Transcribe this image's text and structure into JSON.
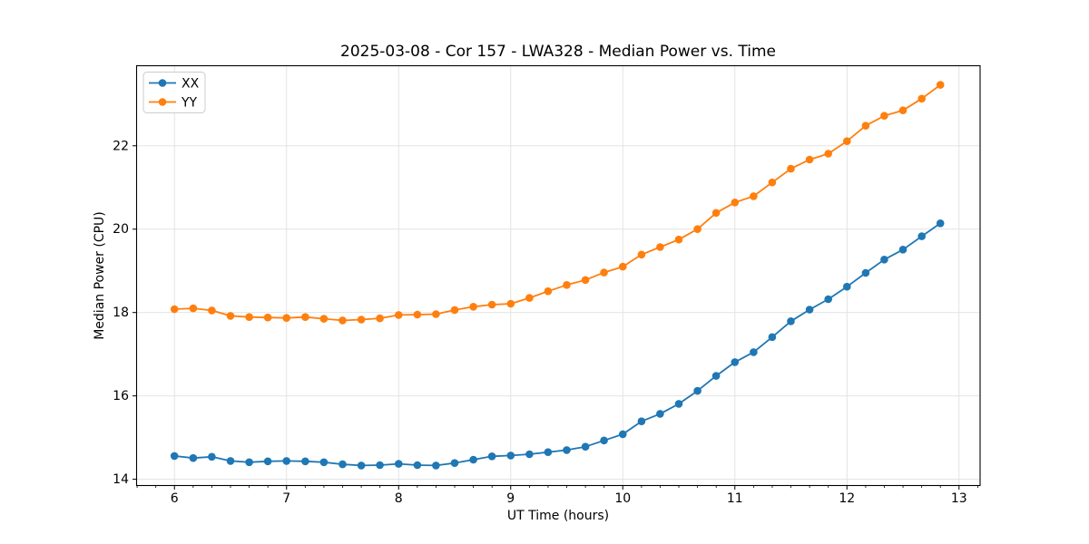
{
  "figure": {
    "background": "#ffffff"
  },
  "style": {
    "grid_color": "#e0e0e0",
    "spine_color": "#000000",
    "tick_color": "#000000",
    "text_color": "#000000",
    "legend_border": "#cccccc",
    "legend_bg": "#ffffff"
  },
  "chart_data": {
    "type": "line",
    "title": "2025-03-08 - Cor 157 - LWA328 - Median Power vs. Time",
    "xlabel": "UT Time (hours)",
    "ylabel": "Median Power (CPU)",
    "xlim": [
      5.662,
      13.188
    ],
    "ylim": [
      13.85,
      23.92
    ],
    "xticks": [
      6,
      7,
      8,
      9,
      10,
      11,
      12,
      13
    ],
    "yticks": [
      14,
      16,
      18,
      20,
      22
    ],
    "x_minor_tick_step": 0.16667,
    "grid": true,
    "legend_position": "upper left",
    "x": [
      6.0,
      6.167,
      6.333,
      6.5,
      6.667,
      6.833,
      7.0,
      7.167,
      7.333,
      7.5,
      7.667,
      7.833,
      8.0,
      8.167,
      8.333,
      8.5,
      8.667,
      8.833,
      9.0,
      9.167,
      9.333,
      9.5,
      9.667,
      9.833,
      10.0,
      10.167,
      10.333,
      10.5,
      10.667,
      10.833,
      11.0,
      11.167,
      11.333,
      11.5,
      11.667,
      11.833,
      12.0,
      12.167,
      12.333,
      12.5,
      12.667,
      12.833
    ],
    "series": [
      {
        "name": "XX",
        "color": "#1f77b4",
        "marker": "circle",
        "values": [
          14.56,
          14.51,
          14.54,
          14.44,
          14.41,
          14.43,
          14.44,
          14.43,
          14.41,
          14.36,
          14.33,
          14.34,
          14.37,
          14.34,
          14.33,
          14.39,
          14.47,
          14.55,
          14.57,
          14.6,
          14.65,
          14.7,
          14.78,
          14.93,
          15.08,
          15.39,
          15.57,
          15.81,
          16.12,
          16.48,
          16.81,
          17.05,
          17.41,
          17.79,
          18.07,
          18.32,
          18.62,
          18.95,
          19.27,
          19.51,
          19.83,
          20.14
        ]
      },
      {
        "name": "YY",
        "color": "#ff7f0e",
        "marker": "circle",
        "values": [
          18.08,
          18.1,
          18.05,
          17.92,
          17.89,
          17.88,
          17.87,
          17.89,
          17.85,
          17.81,
          17.83,
          17.86,
          17.94,
          17.95,
          17.96,
          18.06,
          18.14,
          18.19,
          18.21,
          18.35,
          18.51,
          18.66,
          18.78,
          18.96,
          19.1,
          19.39,
          19.57,
          19.75,
          20.0,
          20.39,
          20.64,
          20.79,
          21.12,
          21.45,
          21.67,
          21.81,
          22.11,
          22.48,
          22.72,
          22.85,
          23.13,
          23.46
        ]
      }
    ]
  }
}
